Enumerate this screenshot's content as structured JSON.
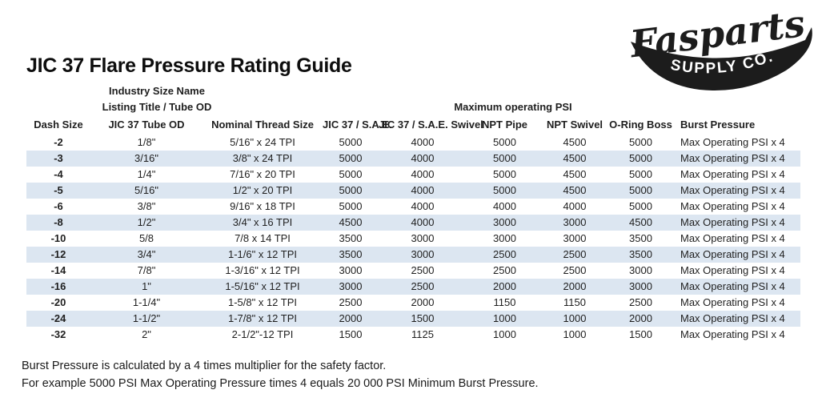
{
  "logo": {
    "brand": "Fasparts",
    "sub": "SUPPLY CO."
  },
  "title": "JIC 37 Flare Pressure Rating Guide",
  "table": {
    "stripe_color": "#dce6f1",
    "col2_header_line1": "Industry Size Name",
    "col2_header_line2": "Listing Title / Tube OD",
    "psi_group_header": "Maximum operating PSI",
    "columns": [
      "Dash Size",
      "JIC 37 Tube OD",
      "Nominal Thread Size",
      "JIC 37 / S.A.E.",
      "JIC 37 / S.A.E. Swivel",
      "NPT Pipe",
      "NPT Swivel",
      "O-Ring Boss",
      "Burst Pressure"
    ],
    "rows": [
      [
        "-2",
        "1/8\"",
        "5/16\" x 24 TPI",
        "5000",
        "4000",
        "5000",
        "4500",
        "5000",
        "Max Operating PSI x 4"
      ],
      [
        "-3",
        "3/16\"",
        "3/8\" x 24 TPI",
        "5000",
        "4000",
        "5000",
        "4500",
        "5000",
        "Max Operating PSI x 4"
      ],
      [
        "-4",
        "1/4\"",
        "7/16\" x 20 TPI",
        "5000",
        "4000",
        "5000",
        "4500",
        "5000",
        "Max Operating PSI x 4"
      ],
      [
        "-5",
        "5/16\"",
        "1/2\" x 20 TPI",
        "5000",
        "4000",
        "5000",
        "4500",
        "5000",
        "Max Operating PSI x 4"
      ],
      [
        "-6",
        "3/8\"",
        "9/16\" x 18 TPI",
        "5000",
        "4000",
        "4000",
        "4000",
        "5000",
        "Max Operating PSI x 4"
      ],
      [
        "-8",
        "1/2\"",
        "3/4\" x 16 TPI",
        "4500",
        "4000",
        "3000",
        "3000",
        "4500",
        "Max Operating PSI x 4"
      ],
      [
        "-10",
        "5/8",
        "7/8 x 14 TPI",
        "3500",
        "3000",
        "3000",
        "3000",
        "3500",
        "Max Operating PSI x 4"
      ],
      [
        "-12",
        "3/4\"",
        "1-1/6\" x 12 TPI",
        "3500",
        "3000",
        "2500",
        "2500",
        "3500",
        "Max Operating PSI x 4"
      ],
      [
        "-14",
        "7/8\"",
        "1-3/16\" x 12 TPI",
        "3000",
        "2500",
        "2500",
        "2500",
        "3000",
        "Max Operating PSI x 4"
      ],
      [
        "-16",
        "1\"",
        "1-5/16\" x 12 TPI",
        "3000",
        "2500",
        "2000",
        "2000",
        "3000",
        "Max Operating PSI x 4"
      ],
      [
        "-20",
        "1-1/4\"",
        "1-5/8\" x 12 TPI",
        "2500",
        "2000",
        "1150",
        "1150",
        "2500",
        "Max Operating PSI x 4"
      ],
      [
        "-24",
        "1-1/2\"",
        "1-7/8\" x 12 TPI",
        "2000",
        "1500",
        "1000",
        "1000",
        "2000",
        "Max Operating PSI x 4"
      ],
      [
        "-32",
        "2\"",
        "2-1/2\"-12 TPI",
        "1500",
        "1125",
        "1000",
        "1000",
        "1500",
        "Max Operating PSI x 4"
      ]
    ]
  },
  "footer": {
    "line1": "Burst Pressure is calculated by a 4 times multiplier for the safety factor.",
    "line2": "For example 5000 PSI Max Operating Pressure times 4 equals 20 000 PSI Minimum Burst Pressure."
  }
}
